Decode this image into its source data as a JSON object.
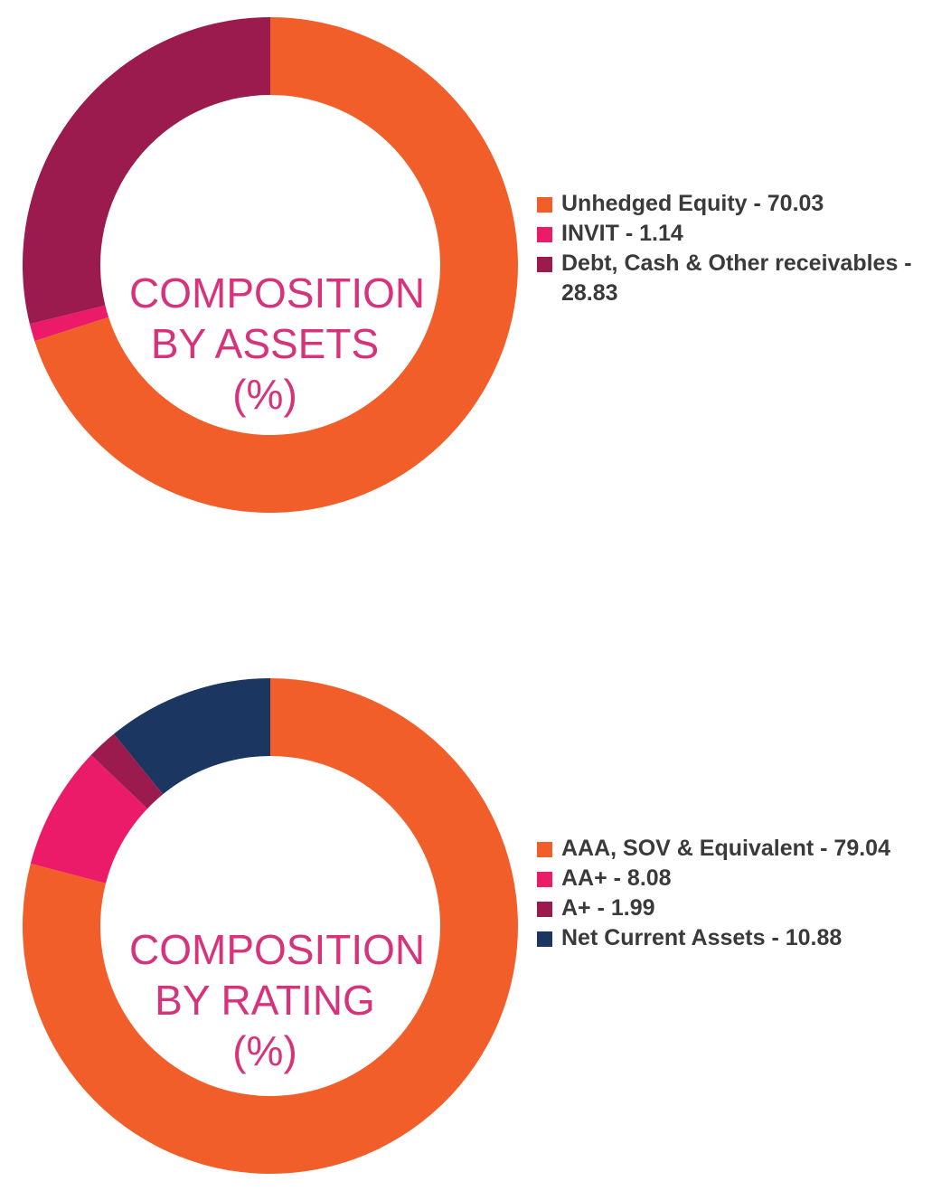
{
  "chart_data": [
    {
      "type": "pie",
      "title_lines": [
        "COMPOSITION",
        "BY ASSETS",
        "(%)"
      ],
      "categories": [
        "Unhedged Equity",
        "INVIT",
        "Debt, Cash & Other receivables"
      ],
      "values": [
        70.03,
        1.14,
        28.83
      ],
      "colors": [
        "#f15e2a",
        "#ec1b6a",
        "#9b1b4f"
      ],
      "legend": [
        "Unhedged Equity - 70.03",
        "INVIT - 1.14",
        "Debt, Cash & Other receivables - 28.83"
      ],
      "legend_placement": "right"
    },
    {
      "type": "pie",
      "title_lines": [
        "COMPOSITION",
        "BY RATING",
        "(%)"
      ],
      "categories": [
        "AAA, SOV & Equivalent",
        "AA+",
        "A+",
        "Net Current Assets"
      ],
      "values": [
        79.04,
        8.08,
        1.99,
        10.88
      ],
      "colors": [
        "#f15e2a",
        "#ec1b6a",
        "#9b1b4f",
        "#1b3761"
      ],
      "legend": [
        "AAA, SOV & Equivalent - 79.04",
        "AA+ - 8.08",
        "A+ - 1.99",
        "Net Current Assets - 10.88"
      ],
      "legend_placement": "right"
    }
  ]
}
